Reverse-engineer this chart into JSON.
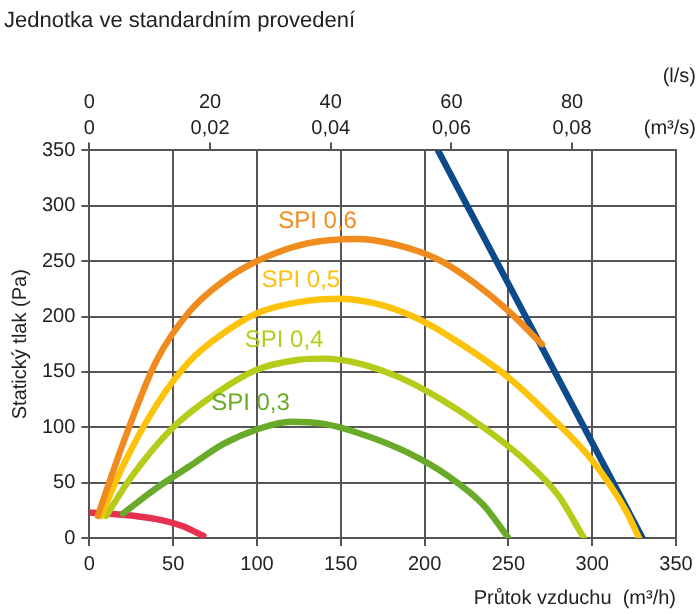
{
  "chart_data": {
    "type": "line",
    "title": "Jednotka ve standardním provedení",
    "xlabel": "Průtok vzduchu  (m³/h)",
    "ylabel": "Statický tlak (Pa)",
    "x2label": "(l/s)",
    "annotations": [
      "0",
      "0,02",
      "0,04",
      "0,06",
      "0,08",
      "(m³/s)"
    ],
    "xlim": [
      0,
      350
    ],
    "xticks": [
      0,
      50,
      100,
      150,
      200,
      250,
      300,
      350
    ],
    "ylim": [
      0,
      350
    ],
    "yticks": [
      0,
      50,
      100,
      150,
      200,
      250,
      300,
      350
    ],
    "x2lim": [
      0,
      97.22
    ],
    "x2ticks": [
      0,
      20,
      40,
      60,
      80
    ],
    "grid": true,
    "legend": false,
    "marker": "none",
    "line_style": "solid",
    "series": [
      {
        "name": "SPI 0,6",
        "color": "#f08c1e",
        "x": [
          5,
          20,
          40,
          60,
          80,
          100,
          130,
          160,
          190,
          210,
          230,
          250,
          270
        ],
        "values": [
          20,
          85,
          160,
          205,
          232,
          250,
          266,
          270,
          262,
          250,
          230,
          205,
          175
        ]
      },
      {
        "name": "SPI 0,5",
        "color": "#fcc30a",
        "x": [
          7,
          20,
          40,
          60,
          80,
          100,
          125,
          150,
          175,
          200,
          225,
          250,
          275,
          300,
          320,
          328
        ],
        "values": [
          20,
          65,
          120,
          160,
          185,
          203,
          213,
          216,
          210,
          195,
          172,
          145,
          110,
          70,
          25,
          0
        ]
      },
      {
        "name": "SPI 0,4",
        "color": "#b5cd1a",
        "x": [
          10,
          25,
          50,
          75,
          100,
          125,
          140,
          160,
          185,
          210,
          235,
          260,
          280,
          295
        ],
        "values": [
          20,
          55,
          100,
          130,
          152,
          161,
          162,
          158,
          145,
          125,
          100,
          70,
          38,
          0
        ]
      },
      {
        "name": "SPI 0,3",
        "color": "#6aaa2a",
        "x": [
          20,
          40,
          60,
          80,
          100,
          120,
          140,
          160,
          190,
          215,
          235,
          250
        ],
        "values": [
          22,
          45,
          65,
          85,
          98,
          105,
          103,
          95,
          77,
          55,
          30,
          0
        ]
      },
      {
        "color": "#e6304f",
        "x": [
          0,
          20,
          40,
          55,
          68
        ],
        "values": [
          23,
          21,
          17,
          11,
          2
        ]
      },
      {
        "color": "#0d4a8a",
        "x": [
          208,
          330
        ],
        "values": [
          350,
          0
        ]
      }
    ]
  }
}
